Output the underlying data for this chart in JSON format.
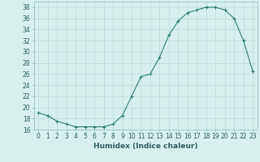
{
  "xlabel": "Humidex (Indice chaleur)",
  "x": [
    0,
    1,
    2,
    3,
    4,
    5,
    6,
    7,
    8,
    9,
    10,
    11,
    12,
    13,
    14,
    15,
    16,
    17,
    18,
    19,
    20,
    21,
    22,
    23
  ],
  "y": [
    19,
    18.5,
    17.5,
    17,
    16.5,
    16.5,
    16.5,
    16.5,
    17,
    18.5,
    22,
    25.5,
    26,
    29,
    33,
    35.5,
    37,
    37.5,
    38,
    38,
    37.5,
    36,
    32,
    26.5
  ],
  "line_color": "#2e7d6e",
  "marker": "+",
  "marker_size": 3,
  "marker_linewidth": 0.8,
  "line_width": 0.8,
  "bg_color": "#d7f0ee",
  "grid_color": "#b8dbd8",
  "ylim": [
    16,
    39
  ],
  "xlim": [
    -0.5,
    23.5
  ],
  "yticks": [
    16,
    18,
    20,
    22,
    24,
    26,
    28,
    30,
    32,
    34,
    36,
    38
  ],
  "xticks": [
    0,
    1,
    2,
    3,
    4,
    5,
    6,
    7,
    8,
    9,
    10,
    11,
    12,
    13,
    14,
    15,
    16,
    17,
    18,
    19,
    20,
    21,
    22,
    23
  ],
  "xtick_labels": [
    "0",
    "1",
    "2",
    "3",
    "4",
    "5",
    "6",
    "7",
    "8",
    "9",
    "10",
    "11",
    "12",
    "13",
    "14",
    "15",
    "16",
    "17",
    "18",
    "19",
    "20",
    "21",
    "22",
    "23"
  ],
  "label_fontsize": 6.5,
  "tick_fontsize": 5.5,
  "tick_color": "#2e5e5e",
  "spine_color": "#8ababa"
}
